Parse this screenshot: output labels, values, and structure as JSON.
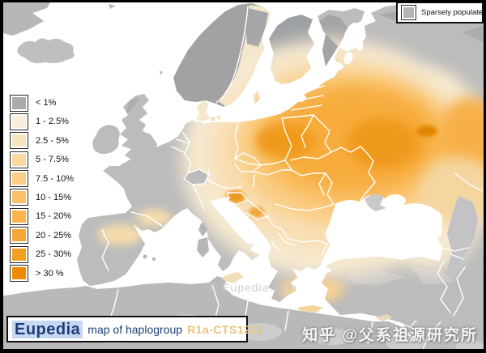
{
  "sparse_legend": {
    "label": "Sparsely populated",
    "color": "#b5b5b5"
  },
  "legend": {
    "items": [
      {
        "label": "< 1%",
        "color": "#ababab"
      },
      {
        "label": "1 - 2.5%",
        "color": "#f9eedd"
      },
      {
        "label": "2.5 - 5%",
        "color": "#f9e4c0"
      },
      {
        "label": "5 - 7.5%",
        "color": "#fad9a2"
      },
      {
        "label": "7.5 - 10%",
        "color": "#fbcf85"
      },
      {
        "label": "10 - 15%",
        "color": "#fac167"
      },
      {
        "label": "15 - 20%",
        "color": "#f9b54c"
      },
      {
        "label": "20 - 25%",
        "color": "#f7a832"
      },
      {
        "label": "25 - 30%",
        "color": "#f49e20"
      },
      {
        "label": "> 30 %",
        "color": "#ee8b00"
      }
    ]
  },
  "banner": {
    "brand": "Eupedia",
    "brand_color": "#1d3f76",
    "brand_bg": "#c8d7f2",
    "title": "map of haplogroup",
    "title_color": "#1d3f76",
    "subject": "R1a-CTS1211",
    "subject_color": "#e8c47d"
  },
  "watermarks": {
    "center": "© Eupedia.com",
    "bottom_right": "知乎 @父系祖源研究所"
  },
  "map": {
    "region": "Europe",
    "sea_color": "#ffffff",
    "land_color": "#bcbcbc",
    "sparse_dark_color": "#a2a2a5",
    "border_color": "#ffffff",
    "max_color": "#e18500"
  }
}
